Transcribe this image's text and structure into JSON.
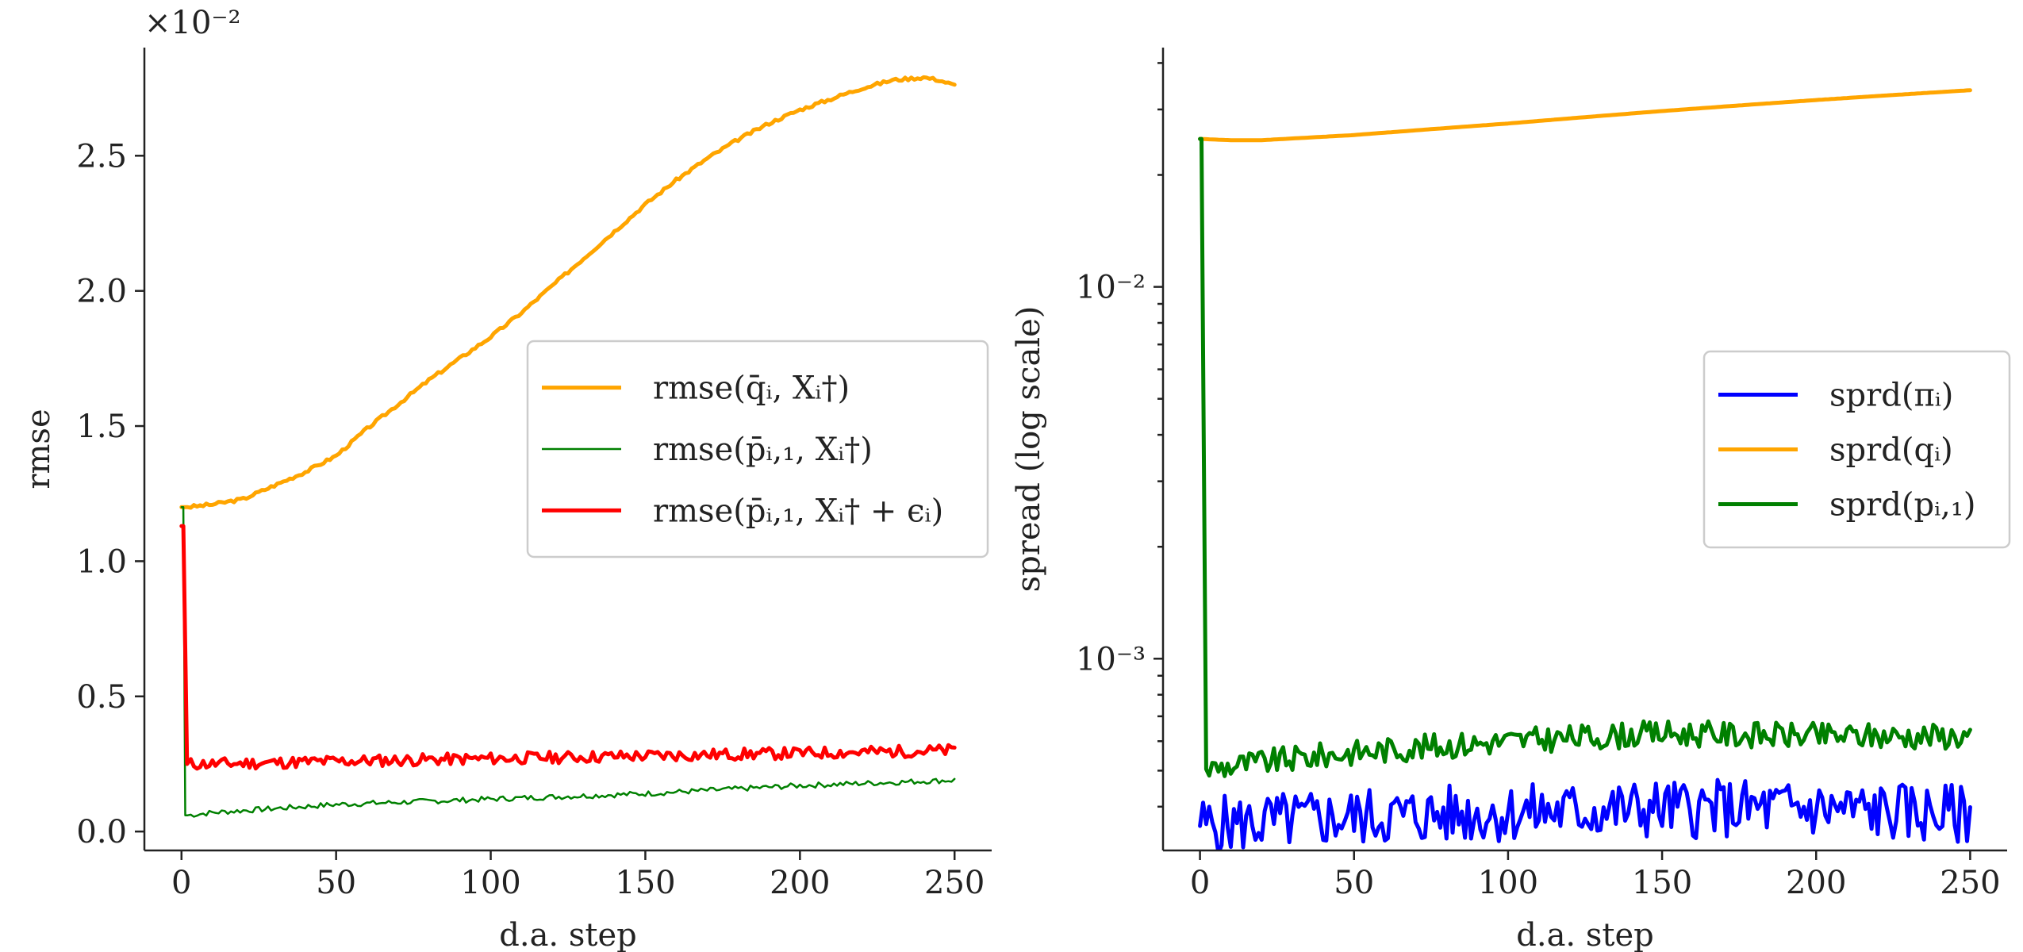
{
  "chart_data": [
    {
      "type": "line",
      "id": "left",
      "ylabel": "rmse",
      "xlabel": "d.a. step",
      "offset_text": "×10⁻²",
      "xlim": [
        -12,
        262
      ],
      "ylim": [
        -0.07,
        2.9
      ],
      "yscale": "linear",
      "xticks": [
        0,
        50,
        100,
        150,
        200,
        250
      ],
      "xtick_labels": [
        "0",
        "50",
        "100",
        "150",
        "200",
        "250"
      ],
      "yticks": [
        0.0,
        0.5,
        1.0,
        1.5,
        2.0,
        2.5
      ],
      "ytick_labels": [
        "0.0",
        "0.5",
        "1.0",
        "1.5",
        "2.0",
        "2.5"
      ],
      "legend_position": "center-right",
      "series": [
        {
          "name": "rmse(q̄ᵢ, Xᵢ†)",
          "color": "#ffa500",
          "width": 5,
          "x": [
            0,
            2,
            10,
            20,
            30,
            40,
            50,
            60,
            70,
            80,
            90,
            100,
            110,
            120,
            130,
            140,
            150,
            160,
            170,
            180,
            190,
            200,
            210,
            220,
            230,
            240,
            245,
            250
          ],
          "values": [
            1.2,
            1.2,
            1.21,
            1.23,
            1.28,
            1.33,
            1.39,
            1.49,
            1.58,
            1.67,
            1.75,
            1.83,
            1.92,
            2.02,
            2.12,
            2.22,
            2.32,
            2.41,
            2.49,
            2.56,
            2.62,
            2.67,
            2.71,
            2.75,
            2.78,
            2.79,
            2.78,
            2.76
          ],
          "noise": 0.006,
          "noise_seed": 3
        },
        {
          "name": "rmse(p̄ᵢ,₁, Xᵢ†)",
          "color": "#008000",
          "width": 2.5,
          "x": [
            0,
            0.6,
            1.2,
            2,
            10,
            50,
            100,
            150,
            200,
            250
          ],
          "values": [
            1.2,
            1.2,
            0.06,
            0.06,
            0.07,
            0.1,
            0.12,
            0.14,
            0.17,
            0.19
          ],
          "noise": 0.01,
          "noise_seed": 7
        },
        {
          "name": "rmse(p̄ᵢ,₁, Xᵢ† + ϵᵢ)",
          "color": "#ff0000",
          "width": 5,
          "x": [
            0,
            0.6,
            1.8,
            10,
            50,
            100,
            150,
            200,
            250
          ],
          "values": [
            1.13,
            1.13,
            0.25,
            0.25,
            0.26,
            0.27,
            0.28,
            0.29,
            0.3
          ],
          "noise": 0.022,
          "noise_seed": 11
        }
      ]
    },
    {
      "type": "line",
      "id": "right",
      "ylabel": "spread (log scale)",
      "xlabel": "d.a. step",
      "xlim": [
        -12,
        262
      ],
      "ylim": [
        0.000305,
        0.044
      ],
      "yscale": "log",
      "xticks": [
        0,
        50,
        100,
        150,
        200,
        250
      ],
      "xtick_labels": [
        "0",
        "50",
        "100",
        "150",
        "200",
        "250"
      ],
      "major_yticks": [
        0.001,
        0.01
      ],
      "ytick_labels": [
        "10⁻³",
        "10⁻²"
      ],
      "legend_position": "center-right",
      "series": [
        {
          "name": "sprd(πᵢ)",
          "color": "#0000ff",
          "width": 5,
          "x": [
            0,
            50,
            100,
            150,
            200,
            250
          ],
          "values": [
            0.000355,
            0.000375,
            0.000385,
            0.000395,
            0.000395,
            0.00038
          ],
          "log_noise": 0.08,
          "noise_seed": 5
        },
        {
          "name": "sprd(qᵢ)",
          "color": "#ffa500",
          "width": 5,
          "x": [
            0,
            10,
            20,
            50,
            100,
            150,
            200,
            250
          ],
          "values": [
            0.025,
            0.0248,
            0.0248,
            0.0256,
            0.0275,
            0.0297,
            0.0318,
            0.0338
          ],
          "log_noise": 0,
          "noise_seed": 1
        },
        {
          "name": "sprd(pᵢ,₁)",
          "color": "#008000",
          "width": 5,
          "x": [
            0,
            0.5,
            2,
            10,
            50,
            100,
            150,
            200,
            250
          ],
          "values": [
            0.025,
            0.025,
            0.000505,
            0.000515,
            0.00056,
            0.0006,
            0.00063,
            0.00062,
            0.00062
          ],
          "log_noise": 0.035,
          "noise_seed": 9
        }
      ]
    }
  ]
}
